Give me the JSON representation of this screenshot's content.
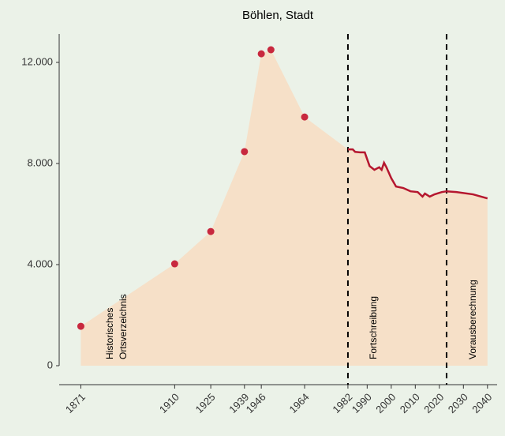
{
  "chart_data": {
    "type": "area-line",
    "title": "Böhlen, Stadt",
    "points": {
      "x": [
        1871,
        1910,
        1925,
        1939,
        1946,
        1950,
        1964
      ],
      "values": [
        1560,
        4030,
        5310,
        8470,
        12340,
        12500,
        9840
      ],
      "color": "#c8283e"
    },
    "line": {
      "x": [
        1982,
        1984,
        1985,
        1987,
        1989,
        1991,
        1993,
        1995,
        1996,
        1997,
        1998,
        2000,
        2002,
        2005,
        2008,
        2011,
        2013,
        2014,
        2016,
        2018,
        2021,
        2023,
        2027,
        2034,
        2040
      ],
      "values": [
        8560,
        8560,
        8460,
        8440,
        8440,
        7900,
        7750,
        7850,
        7750,
        8030,
        7850,
        7420,
        7090,
        7030,
        6900,
        6870,
        6690,
        6810,
        6690,
        6780,
        6870,
        6900,
        6870,
        6780,
        6620
      ],
      "color": "#b5172f"
    },
    "area_color": "#f6e0c8",
    "vlines": [
      1982,
      2023
    ],
    "annotations": [
      "Historisches",
      "Ortsverzeichnis",
      "Fortschreibung",
      "Vorausberechnung"
    ],
    "xlim": [
      1862,
      2044
    ],
    "ylim": [
      -750,
      13125
    ],
    "xticks": [
      1871,
      1910,
      1925,
      1939,
      1946,
      1964,
      1982,
      1990,
      2000,
      2010,
      2020,
      2030,
      2040
    ],
    "yticks": [
      0,
      {
        "value": 4000,
        "label": "4.000"
      },
      {
        "value": 8000,
        "label": "8.000"
      },
      {
        "value": 12000,
        "label": "12.000"
      }
    ]
  }
}
